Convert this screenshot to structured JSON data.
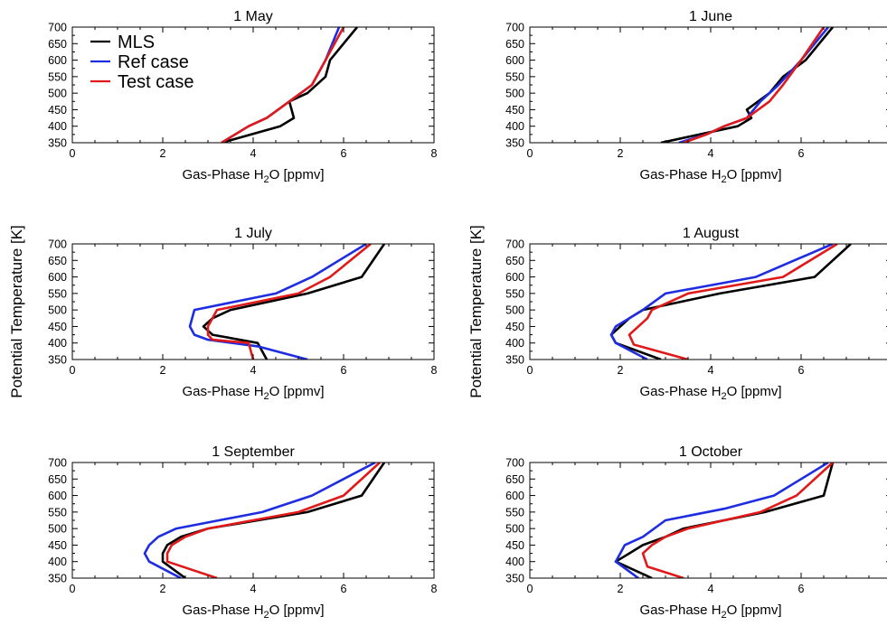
{
  "y_axis_label": "Potential Temperature [K]",
  "colors": {
    "MLS": "#000000",
    "Ref case": "#1f2de0",
    "Test case": "#e01a1a"
  },
  "legend": {
    "placement": "top-left (in 1 May panel)",
    "entries": [
      "MLS",
      "Ref case",
      "Test case"
    ]
  },
  "chart_data": [
    {
      "type": "line",
      "title": "1 May",
      "xlabel": {
        "main": "Gas-Phase H",
        "sub": "2",
        "rest": "O [ppmv]"
      },
      "ylabel": "",
      "xlim": [
        0,
        8
      ],
      "ylim": [
        350,
        700
      ],
      "xticks": [
        "0",
        "2",
        "4",
        "6",
        "8"
      ],
      "yticks": [
        "350",
        "400",
        "450",
        "500",
        "550",
        "600",
        "650",
        "700"
      ],
      "series": [
        {
          "name": "MLS",
          "x": [
            3.3,
            4.6,
            4.9,
            4.8,
            5.2,
            5.6,
            5.7,
            6.3
          ],
          "y": [
            350,
            400,
            425,
            475,
            500,
            550,
            600,
            700
          ]
        },
        {
          "name": "Ref case",
          "x": [
            3.3,
            3.9,
            4.3,
            4.8,
            5.3,
            5.6,
            5.9
          ],
          "y": [
            350,
            400,
            425,
            475,
            525,
            600,
            700
          ]
        },
        {
          "name": "Test case",
          "x": [
            3.3,
            3.9,
            4.3,
            4.8,
            5.3,
            5.6,
            6.0
          ],
          "y": [
            350,
            400,
            425,
            475,
            525,
            600,
            700
          ]
        }
      ]
    },
    {
      "type": "line",
      "title": "1 June",
      "xlabel": {
        "main": "Gas-Phase H",
        "sub": "2",
        "rest": "O [ppmv]"
      },
      "ylabel": "",
      "xlim": [
        0,
        8
      ],
      "ylim": [
        350,
        700
      ],
      "xticks": [
        "0",
        "2",
        "4",
        "6",
        "8"
      ],
      "yticks": [
        "350",
        "400",
        "450",
        "500",
        "550",
        "600",
        "650",
        "700"
      ],
      "series": [
        {
          "name": "MLS",
          "x": [
            2.9,
            4.6,
            4.9,
            4.8,
            5.3,
            5.6,
            6.1,
            6.7
          ],
          "y": [
            350,
            400,
            425,
            450,
            500,
            550,
            600,
            700
          ]
        },
        {
          "name": "Ref case",
          "x": [
            3.3,
            3.9,
            4.3,
            4.8,
            5.1,
            5.5,
            6.0,
            6.6
          ],
          "y": [
            350,
            375,
            400,
            425,
            475,
            525,
            600,
            700
          ]
        },
        {
          "name": "Test case",
          "x": [
            3.4,
            3.9,
            4.3,
            4.8,
            5.3,
            5.6,
            6.0,
            6.5
          ],
          "y": [
            350,
            375,
            400,
            425,
            475,
            525,
            600,
            700
          ]
        }
      ]
    },
    {
      "type": "line",
      "title": "1 July",
      "xlabel": {
        "main": "Gas-Phase H",
        "sub": "2",
        "rest": "O [ppmv]"
      },
      "ylabel": "",
      "xlim": [
        0,
        8
      ],
      "ylim": [
        350,
        700
      ],
      "xticks": [
        "0",
        "2",
        "4",
        "6",
        "8"
      ],
      "yticks": [
        "350",
        "400",
        "450",
        "500",
        "550",
        "600",
        "650",
        "700"
      ],
      "series": [
        {
          "name": "MLS",
          "x": [
            4.3,
            4.1,
            3.1,
            2.9,
            3.1,
            3.5,
            5.2,
            6.4,
            6.9
          ],
          "y": [
            350,
            400,
            425,
            450,
            475,
            500,
            550,
            600,
            700
          ]
        },
        {
          "name": "Ref case",
          "x": [
            5.2,
            4.1,
            3.0,
            2.7,
            2.6,
            2.7,
            4.5,
            5.3,
            6.5
          ],
          "y": [
            350,
            390,
            410,
            425,
            450,
            500,
            550,
            600,
            700
          ]
        },
        {
          "name": "Test case",
          "x": [
            4.0,
            3.9,
            3.1,
            3.0,
            3.0,
            3.2,
            5.0,
            5.7,
            6.6
          ],
          "y": [
            350,
            400,
            410,
            425,
            450,
            500,
            550,
            600,
            700
          ]
        }
      ]
    },
    {
      "type": "line",
      "title": "1 August",
      "xlabel": {
        "main": "Gas-Phase H",
        "sub": "2",
        "rest": "O [ppmv]"
      },
      "ylabel": "",
      "xlim": [
        0,
        8
      ],
      "ylim": [
        350,
        700
      ],
      "xticks": [
        "0",
        "2",
        "4",
        "6",
        "8"
      ],
      "yticks": [
        "350",
        "400",
        "450",
        "500",
        "550",
        "600",
        "650",
        "700"
      ],
      "series": [
        {
          "name": "MLS",
          "x": [
            2.9,
            1.9,
            1.8,
            2.0,
            2.2,
            2.5,
            4.2,
            6.3,
            7.1
          ],
          "y": [
            350,
            400,
            425,
            450,
            475,
            500,
            550,
            600,
            700
          ]
        },
        {
          "name": "Ref case",
          "x": [
            2.6,
            1.9,
            1.8,
            1.9,
            2.2,
            2.5,
            3.0,
            5.0,
            6.7
          ],
          "y": [
            350,
            400,
            425,
            450,
            475,
            500,
            550,
            600,
            700
          ]
        },
        {
          "name": "Test case",
          "x": [
            3.5,
            2.3,
            2.2,
            2.4,
            2.6,
            2.7,
            3.5,
            5.6,
            6.8
          ],
          "y": [
            350,
            395,
            425,
            450,
            475,
            500,
            550,
            600,
            700
          ]
        }
      ]
    },
    {
      "type": "line",
      "title": "1 September",
      "xlabel": {
        "main": "Gas-Phase H",
        "sub": "2",
        "rest": "O [ppmv]"
      },
      "ylabel": "",
      "xlim": [
        0,
        8
      ],
      "ylim": [
        350,
        700
      ],
      "xticks": [
        "0",
        "2",
        "4",
        "6",
        "8"
      ],
      "yticks": [
        "350",
        "400",
        "450",
        "500",
        "550",
        "600",
        "650",
        "700"
      ],
      "series": [
        {
          "name": "MLS",
          "x": [
            2.5,
            2.0,
            2.0,
            2.1,
            2.4,
            3.0,
            5.2,
            6.4,
            6.9
          ],
          "y": [
            350,
            400,
            425,
            450,
            475,
            500,
            550,
            600,
            700
          ]
        },
        {
          "name": "Ref case",
          "x": [
            2.4,
            1.7,
            1.6,
            1.7,
            1.9,
            2.3,
            4.2,
            5.3,
            6.7
          ],
          "y": [
            350,
            400,
            425,
            450,
            475,
            500,
            550,
            600,
            700
          ]
        },
        {
          "name": "Test case",
          "x": [
            3.2,
            2.1,
            2.1,
            2.2,
            2.5,
            3.0,
            5.0,
            6.0,
            6.8
          ],
          "y": [
            350,
            400,
            425,
            450,
            475,
            500,
            550,
            600,
            700
          ]
        }
      ]
    },
    {
      "type": "line",
      "title": "1 October",
      "xlabel": {
        "main": "Gas-Phase H",
        "sub": "2",
        "rest": "O [ppmv]"
      },
      "ylabel": "",
      "xlim": [
        0,
        8
      ],
      "ylim": [
        350,
        700
      ],
      "xticks": [
        "0",
        "2",
        "4",
        "6",
        "8"
      ],
      "yticks": [
        "350",
        "400",
        "450",
        "500",
        "550",
        "600",
        "650",
        "700"
      ],
      "series": [
        {
          "name": "MLS",
          "x": [
            2.7,
            1.9,
            2.2,
            2.5,
            3.0,
            3.4,
            5.2,
            6.5,
            6.7
          ],
          "y": [
            350,
            400,
            425,
            450,
            475,
            500,
            550,
            600,
            700
          ]
        },
        {
          "name": "Ref case",
          "x": [
            2.4,
            1.9,
            2.0,
            2.1,
            2.5,
            3.0,
            4.3,
            5.4,
            6.6
          ],
          "y": [
            350,
            400,
            425,
            450,
            475,
            525,
            560,
            600,
            700
          ]
        },
        {
          "name": "Test case",
          "x": [
            3.4,
            2.6,
            2.5,
            2.7,
            3.0,
            3.5,
            5.1,
            5.9,
            6.7
          ],
          "y": [
            350,
            385,
            425,
            450,
            475,
            500,
            550,
            600,
            700
          ]
        }
      ]
    }
  ]
}
